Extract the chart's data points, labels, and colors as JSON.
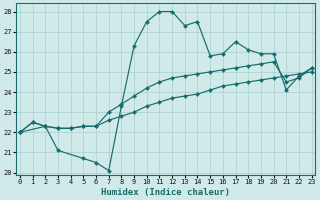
{
  "xlabel": "Humidex (Indice chaleur)",
  "xlim": [
    0,
    23
  ],
  "ylim": [
    20,
    28
  ],
  "xticks": [
    0,
    1,
    2,
    3,
    4,
    5,
    6,
    7,
    8,
    9,
    10,
    11,
    12,
    13,
    14,
    15,
    16,
    17,
    18,
    19,
    20,
    21,
    22,
    23
  ],
  "yticks": [
    20,
    21,
    22,
    23,
    24,
    25,
    26,
    27,
    28
  ],
  "background_color": "#d0eaea",
  "grid_color": "#a8cece",
  "line_color": "#1a6b6b",
  "lines": [
    {
      "x": [
        0,
        1,
        2,
        3,
        4,
        5,
        6,
        7,
        8,
        9,
        10,
        11,
        12,
        13,
        14,
        15,
        16,
        17,
        18,
        19,
        20,
        21,
        22,
        23
      ],
      "y": [
        22.0,
        22.5,
        22.3,
        22.2,
        22.2,
        22.3,
        22.3,
        22.6,
        22.8,
        23.0,
        23.3,
        23.5,
        23.7,
        23.8,
        23.9,
        24.1,
        24.3,
        24.4,
        24.5,
        24.6,
        24.7,
        24.8,
        24.9,
        25.0
      ]
    },
    {
      "x": [
        0,
        1,
        2,
        3,
        4,
        5,
        6,
        7,
        8,
        9,
        10,
        11,
        12,
        13,
        14,
        15,
        16,
        17,
        18,
        19,
        20,
        21,
        22,
        23
      ],
      "y": [
        22.0,
        22.5,
        22.3,
        22.2,
        22.2,
        22.3,
        22.3,
        23.0,
        23.4,
        23.8,
        24.2,
        24.5,
        24.7,
        24.8,
        24.9,
        25.0,
        25.1,
        25.2,
        25.3,
        25.4,
        25.5,
        24.5,
        24.7,
        25.2
      ]
    },
    {
      "x": [
        0,
        2,
        3,
        5,
        6,
        7,
        8,
        9,
        10,
        11,
        12,
        13,
        14,
        15,
        16,
        17,
        18,
        19,
        20,
        21,
        22,
        23
      ],
      "y": [
        22.0,
        22.3,
        21.1,
        20.7,
        20.5,
        20.1,
        23.3,
        26.3,
        27.5,
        28.0,
        28.0,
        27.3,
        27.5,
        25.8,
        25.9,
        26.5,
        26.1,
        25.9,
        25.9,
        24.1,
        24.8,
        25.2
      ]
    }
  ]
}
